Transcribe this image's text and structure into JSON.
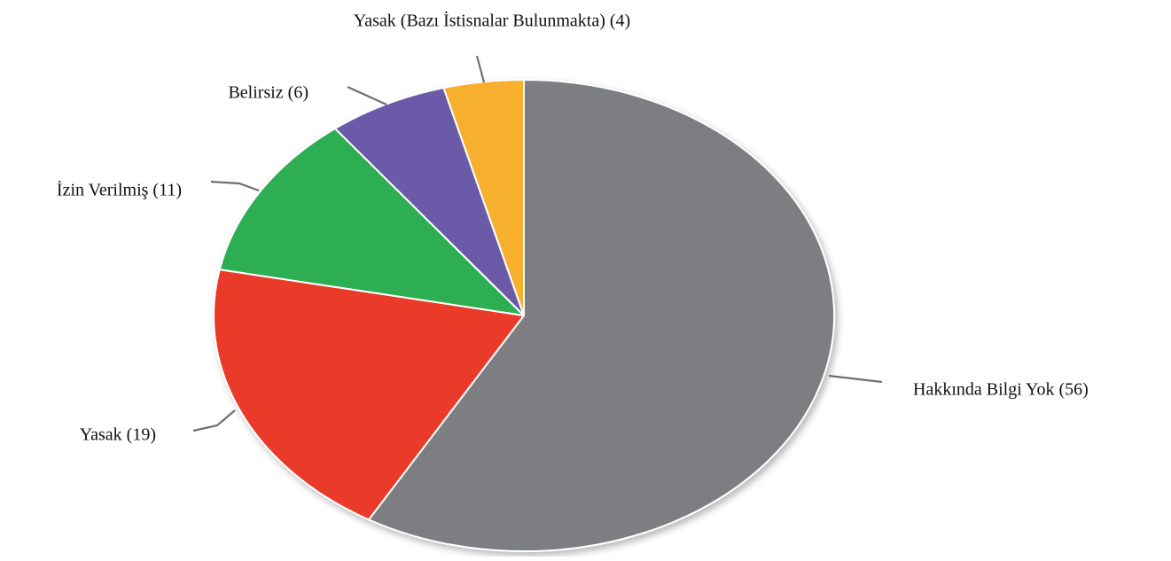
{
  "chart_data": {
    "type": "pie",
    "title": "",
    "total": 96,
    "slices": [
      {
        "name": "Hakkında Bilgi Yok",
        "value": 56,
        "label": "Hakkında Bilgi Yok (56)",
        "color": "#7d7e81"
      },
      {
        "name": "Yasak",
        "value": 19,
        "label": "Yasak (19)",
        "color": "#ea3a2a"
      },
      {
        "name": "İzin Verilmiş",
        "value": 11,
        "label": "İzin Verilmiş (11)",
        "color": "#2fae53"
      },
      {
        "name": "Belirsiz",
        "value": 6,
        "label": "Belirsiz (6)",
        "color": "#6a5aa8"
      },
      {
        "name": "Yasak (Bazı İstisnalar Bulunmakta)",
        "value": 4,
        "label": "Yasak (Bazı İstisnalar Bulunmakta) (4)",
        "color": "#f7b02d"
      }
    ],
    "legend": "none",
    "start": "top",
    "direction": "clockwise"
  }
}
